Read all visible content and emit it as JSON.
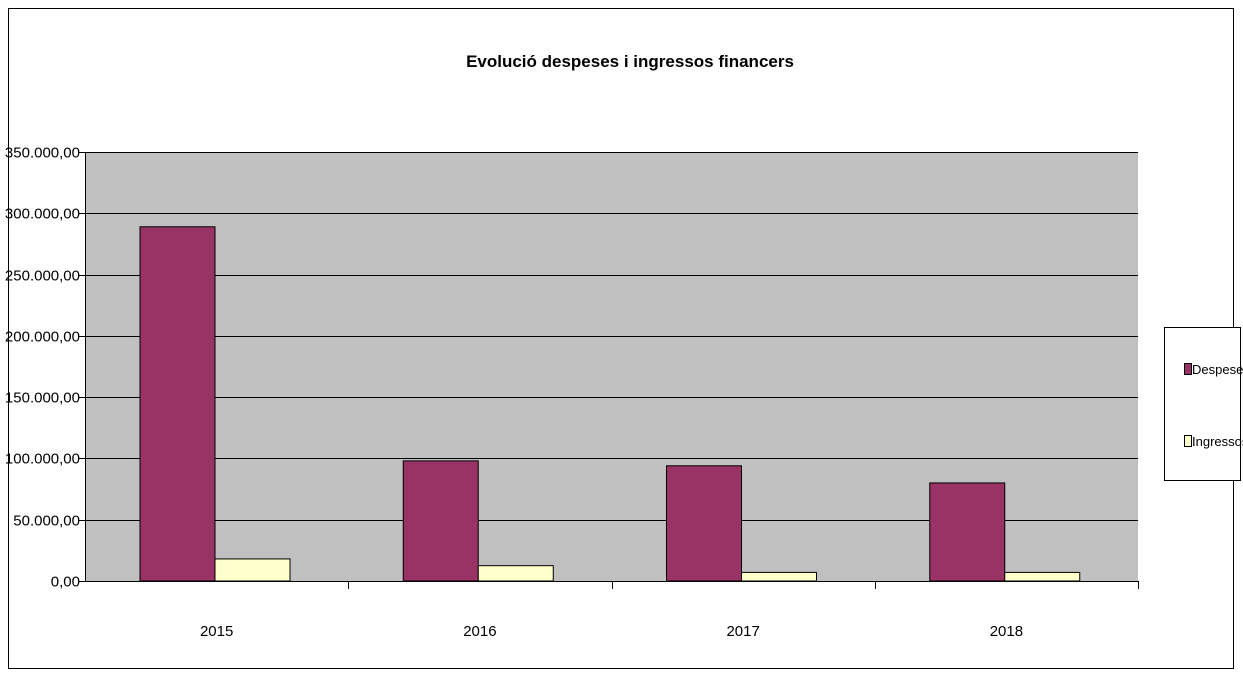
{
  "colors": {
    "plot_background": "#c0c0c0",
    "despeses": "#993366",
    "ingressos": "#ffffcc",
    "gridline": "#000000",
    "frame": "#000000"
  },
  "chart_data": {
    "type": "bar",
    "title": "Evolució despeses i ingressos financers",
    "xlabel": "",
    "ylabel": "",
    "categories": [
      "2015",
      "2016",
      "2017",
      "2018"
    ],
    "series": [
      {
        "name": "Despeses",
        "values": [
          289000,
          98000,
          94000,
          80000
        ]
      },
      {
        "name": "Ingressos",
        "values": [
          18000,
          12500,
          7000,
          7000
        ]
      }
    ],
    "ylim": [
      0,
      350000
    ],
    "ytick_values": [
      0,
      50000,
      100000,
      150000,
      200000,
      250000,
      300000,
      350000
    ],
    "ytick_labels": [
      "0,00",
      "50.000,00",
      "100.000,00",
      "150.000,00",
      "200.000,00",
      "250.000,00",
      "300.000,00",
      "350.000,00"
    ],
    "grid": true,
    "legend_position": "right"
  }
}
